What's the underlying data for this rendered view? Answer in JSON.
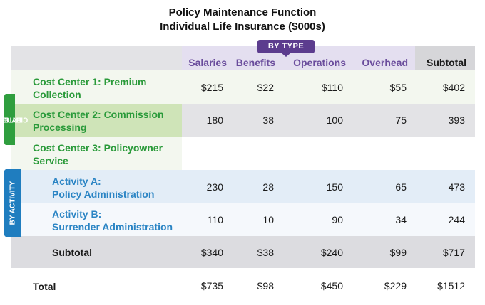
{
  "title_line1": "Policy Maintenance Function",
  "title_line2": "Individual Life Insurance ($000s)",
  "by_type_label": "BY TYPE",
  "by_cost_center_label": [
    "BY COST",
    "CENTER"
  ],
  "by_activity_label": "BY ACTIVITY",
  "columns": [
    "Salaries",
    "Benefits",
    "Operations",
    "Overhead",
    "Subtotal"
  ],
  "rows": [
    {
      "label": [
        "Cost Center 1: Premium",
        "Collection"
      ],
      "values": [
        "$215",
        "$22",
        "$110",
        "$55",
        "$402"
      ]
    },
    {
      "label": [
        "Cost Center 2: Commission",
        "Processing"
      ],
      "values": [
        "180",
        "38",
        "100",
        "75",
        "393"
      ]
    },
    {
      "label": [
        "Cost Center 3: Policyowner",
        "Service"
      ],
      "values": [
        "",
        "",
        "",
        "",
        ""
      ]
    },
    {
      "label": [
        "Activity A:",
        "Policy Administration"
      ],
      "values": [
        "230",
        "28",
        "150",
        "65",
        "473"
      ]
    },
    {
      "label": [
        "Activity B:",
        "Surrender Administration"
      ],
      "values": [
        "110",
        "10",
        "90",
        "34",
        "244"
      ]
    },
    {
      "label": [
        "Subtotal"
      ],
      "values": [
        "$340",
        "$38",
        "$240",
        "$99",
        "$717"
      ]
    },
    {
      "label": [
        "Total"
      ],
      "values": [
        "$735",
        "$98",
        "$450",
        "$229",
        "$1512"
      ]
    }
  ],
  "colors": {
    "green_label": "#2a9a3a",
    "blue_label": "#2a84c4",
    "purple_header": "#6a4c9c",
    "badge": "#5c3c8e"
  }
}
